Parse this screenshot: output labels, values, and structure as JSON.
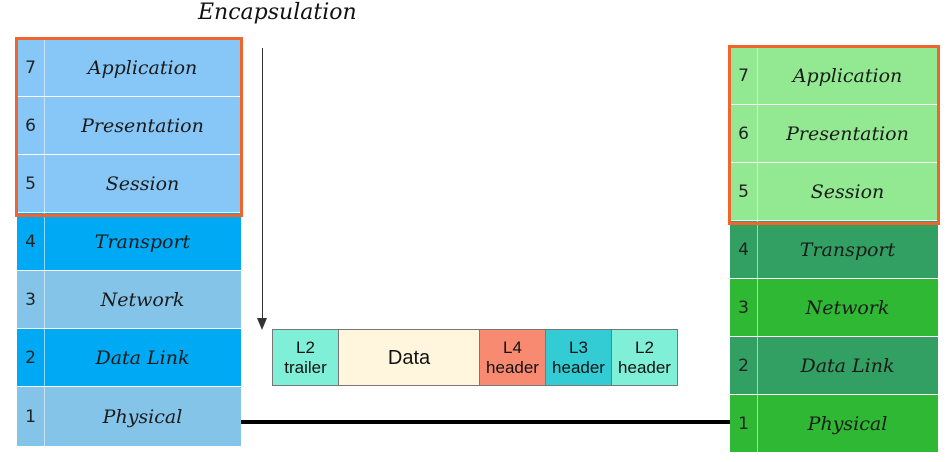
{
  "title": "Encapsulation",
  "left_stack": {
    "layers": [
      {
        "num": "7",
        "name": "Application",
        "color": "#87c7f8"
      },
      {
        "num": "6",
        "name": "Presentation",
        "color": "#87c7f8"
      },
      {
        "num": "5",
        "name": "Session",
        "color": "#87c7f8"
      },
      {
        "num": "4",
        "name": "Transport",
        "color": "#00a9f4"
      },
      {
        "num": "3",
        "name": "Network",
        "color": "#84c4e9"
      },
      {
        "num": "2",
        "name": "Data Link",
        "color": "#00a9f4"
      },
      {
        "num": "1",
        "name": "Physical",
        "color": "#84c4e9"
      }
    ]
  },
  "right_stack": {
    "layers": [
      {
        "num": "7",
        "name": "Application",
        "color": "#93e992"
      },
      {
        "num": "6",
        "name": "Presentation",
        "color": "#93e992"
      },
      {
        "num": "5",
        "name": "Session",
        "color": "#93e992"
      },
      {
        "num": "4",
        "name": "Transport",
        "color": "#33a063"
      },
      {
        "num": "3",
        "name": "Network",
        "color": "#2eb834"
      },
      {
        "num": "2",
        "name": "Data Link",
        "color": "#33a063"
      },
      {
        "num": "1",
        "name": "Physical",
        "color": "#2eb834"
      }
    ]
  },
  "highlight_color": "#f0642d",
  "frame": {
    "segments": [
      {
        "label": "L2\ntrailer",
        "color": "#7ff0d7"
      },
      {
        "label": "Data",
        "color": "#fff6dd"
      },
      {
        "label": "L4\nheader",
        "color": "#f88a72"
      },
      {
        "label": "L3\nheader",
        "color": "#33ccd4"
      },
      {
        "label": "L2\nheader",
        "color": "#7ff0d7"
      }
    ]
  }
}
